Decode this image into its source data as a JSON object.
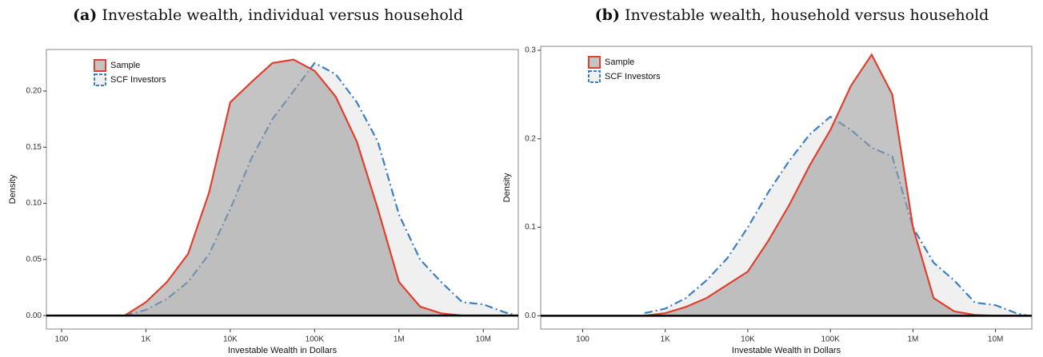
{
  "chart_data": [
    {
      "type": "area",
      "panel_label": "(a)",
      "title": "Investable wealth, individual versus household",
      "xlabel": "Investable Wealth in Dollars",
      "ylabel": "Density",
      "xscale": "log",
      "legend": "top-left",
      "xlim": [
        66,
        26000000
      ],
      "ylim": [
        -0.012,
        0.237
      ],
      "xticks": [
        100,
        {
          "value": 1000,
          "label": "1K"
        },
        {
          "value": 10000,
          "label": "10K"
        },
        {
          "value": 100000,
          "label": "100K"
        },
        {
          "value": 1000000,
          "label": "1M"
        },
        {
          "value": 10000000,
          "label": "10M"
        }
      ],
      "yticks": [
        {
          "value": 0,
          "label": "0.00"
        },
        0.05,
        {
          "value": 0.1,
          "label": "0.10"
        },
        0.15,
        {
          "value": 0.2,
          "label": "0.20"
        }
      ],
      "x": [
        562,
        1000,
        1778,
        3162,
        5623,
        10000,
        17783,
        31623,
        56234,
        100000,
        177828,
        316228,
        562341,
        1000000,
        1778279,
        3162278,
        5623413,
        10000000,
        17782794,
        25118864
      ],
      "series": [
        {
          "name": "SCF Investors",
          "color": "#3b7fc4",
          "fill": "#e6e6e6",
          "linestyle": "dashdot",
          "values": [
            0,
            0.005,
            0.015,
            0.03,
            0.055,
            0.095,
            0.14,
            0.175,
            0.2,
            0.225,
            0.215,
            0.19,
            0.155,
            0.09,
            0.05,
            0.03,
            0.012,
            0.01,
            0.003,
            0
          ]
        },
        {
          "name": "Sample",
          "color": "#e0402f",
          "fill": "#9c9c9c",
          "linestyle": "solid",
          "values": [
            0,
            0.012,
            0.03,
            0.055,
            0.11,
            0.19,
            0.208,
            0.225,
            0.228,
            0.218,
            0.195,
            0.155,
            0.095,
            0.03,
            0.008,
            0.002,
            0,
            0,
            0,
            0
          ]
        }
      ]
    },
    {
      "type": "area",
      "panel_label": "(b)",
      "title": "Investable wealth, household versus household",
      "xlabel": "Investable Wealth in Dollars",
      "ylabel": "Density",
      "xscale": "log",
      "legend": "top-left",
      "xlim": [
        31,
        27500000
      ],
      "ylim": [
        -0.015,
        0.3045
      ],
      "xticks": [
        100,
        {
          "value": 1000,
          "label": "1K"
        },
        {
          "value": 10000,
          "label": "10K"
        },
        {
          "value": 100000,
          "label": "100K"
        },
        {
          "value": 1000000,
          "label": "1M"
        },
        {
          "value": 10000000,
          "label": "10M"
        }
      ],
      "yticks": [
        {
          "value": 0,
          "label": "0.0"
        },
        0.1,
        0.2,
        0.3
      ],
      "x": [
        562,
        1000,
        1778,
        3162,
        5623,
        10000,
        17783,
        31623,
        56234,
        100000,
        177828,
        316228,
        562341,
        1000000,
        1778279,
        3162278,
        5623413,
        10000000,
        17782794,
        25118864
      ],
      "series": [
        {
          "name": "SCF Investors",
          "color": "#3b7fc4",
          "fill": "#e6e6e6",
          "linestyle": "dashdot",
          "values": [
            0.003,
            0.008,
            0.02,
            0.04,
            0.065,
            0.1,
            0.14,
            0.175,
            0.205,
            0.225,
            0.21,
            0.19,
            0.18,
            0.1,
            0.06,
            0.04,
            0.015,
            0.012,
            0.003,
            0
          ]
        },
        {
          "name": "Sample",
          "color": "#e0402f",
          "fill": "#9c9c9c",
          "linestyle": "solid",
          "values": [
            0,
            0.003,
            0.01,
            0.02,
            0.035,
            0.05,
            0.085,
            0.125,
            0.17,
            0.21,
            0.26,
            0.295,
            0.25,
            0.1,
            0.02,
            0.005,
            0.001,
            0,
            0,
            0
          ]
        }
      ]
    }
  ]
}
